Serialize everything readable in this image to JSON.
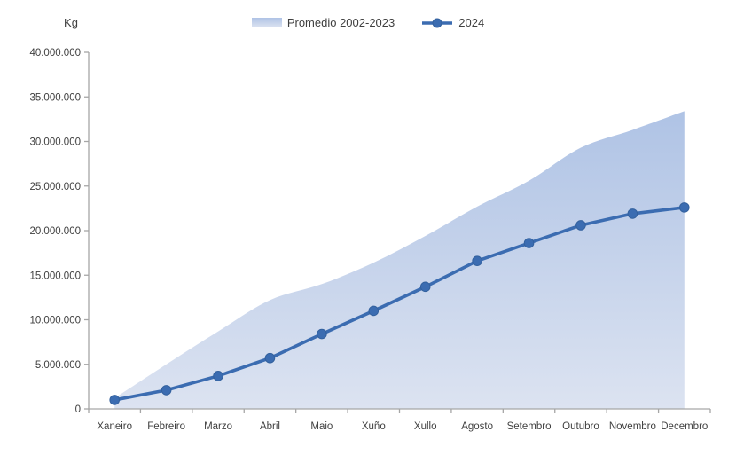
{
  "chart_data": {
    "type": "area+line",
    "title": "",
    "ylabel": "Kg",
    "xlabel": "",
    "grid": false,
    "legend_position": "top-center",
    "ylim": [
      0,
      40000000
    ],
    "y_tick_step": 5000000,
    "y_tick_labels": [
      "0",
      "5.000.000",
      "10.000.000",
      "15.000.000",
      "20.000.000",
      "25.000.000",
      "30.000.000",
      "35.000.000",
      "40.000.000"
    ],
    "categories": [
      "Xaneiro",
      "Febreiro",
      "Marzo",
      "Abril",
      "Maio",
      "Xuño",
      "Xullo",
      "Agosto",
      "Setembro",
      "Outubro",
      "Novembro",
      "Decembro"
    ],
    "series": [
      {
        "name": "Promedio 2002-2023",
        "type": "area",
        "smooth": true,
        "color_top": "#afc3e5",
        "color_bottom": "#dce3f1",
        "values": [
          1200000,
          5000000,
          8700000,
          12200000,
          14000000,
          16400000,
          19400000,
          22700000,
          25600000,
          29300000,
          31300000,
          33400000
        ]
      },
      {
        "name": "2024",
        "type": "line",
        "smooth": false,
        "color": "#3b6cb1",
        "marker": "circle",
        "values": [
          1000000,
          2100000,
          3700000,
          5700000,
          8400000,
          11000000,
          13700000,
          16600000,
          18600000,
          20600000,
          21900000,
          22600000
        ]
      }
    ]
  },
  "colors": {
    "axis": "#a6a6a6",
    "text": "#3f3f3f",
    "line": "#3b6cb1",
    "marker_stroke": "#33619e",
    "area_top": "#afc3e5",
    "area_bottom": "#dce3f1",
    "background": "#ffffff"
  }
}
